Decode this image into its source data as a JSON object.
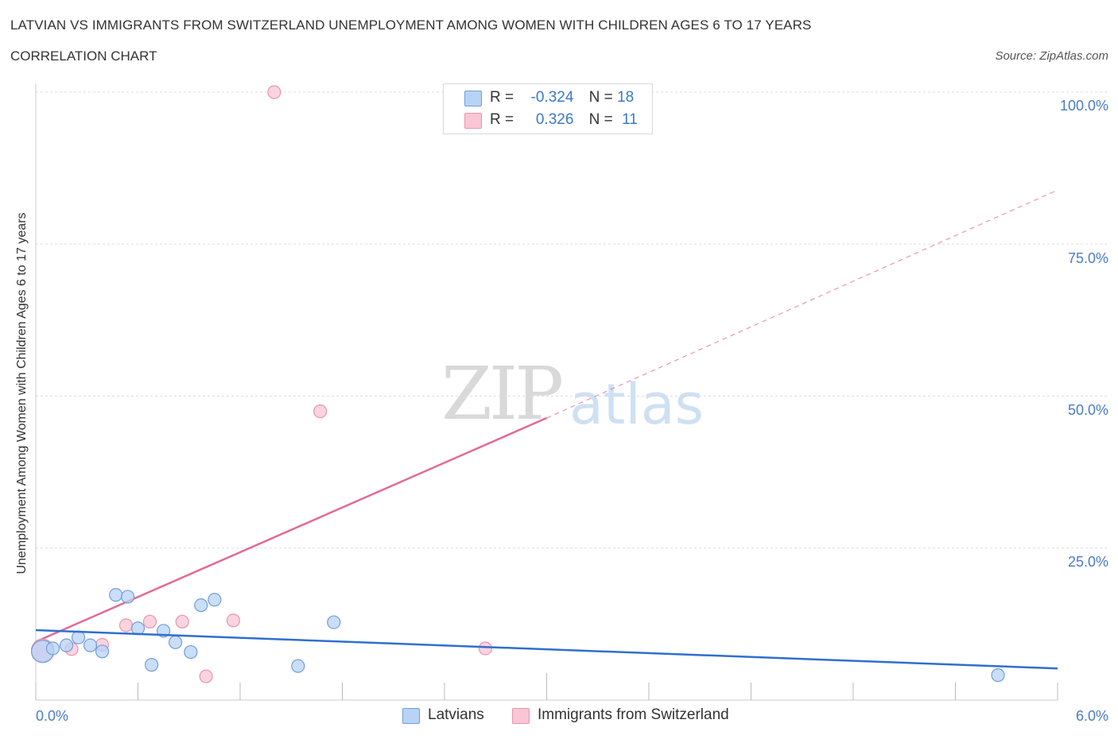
{
  "header": {
    "title": "LATVIAN VS IMMIGRANTS FROM SWITZERLAND UNEMPLOYMENT AMONG WOMEN WITH CHILDREN AGES 6 TO 17 YEARS",
    "subtitle": "CORRELATION CHART",
    "source": "Source: ZipAtlas.com"
  },
  "watermark": {
    "zip": "ZIP",
    "atlas": "atlas"
  },
  "legend": {
    "r_label": "R =",
    "n_label": "N =",
    "series1": {
      "r": "-0.324",
      "n": "18"
    },
    "series2": {
      "r": "0.326",
      "n": "11"
    }
  },
  "chart_data": {
    "type": "scatter",
    "title": "LATVIAN VS IMMIGRANTS FROM SWITZERLAND UNEMPLOYMENT AMONG WOMEN WITH CHILDREN AGES 6 TO 17 YEARS",
    "xlabel": "",
    "ylabel": "Unemployment Among Women with Children Ages 6 to 17 years",
    "xlim": [
      0,
      6
    ],
    "ylim": [
      0,
      100
    ],
    "x_tick_labels": [
      "0.0%",
      "6.0%"
    ],
    "y_ticks": [
      25,
      50,
      75,
      100
    ],
    "y_tick_labels": [
      "25.0%",
      "50.0%",
      "75.0%",
      "100.0%"
    ],
    "grid": true,
    "colors": {
      "latvians_fill": "#b8d3f5",
      "latvians_stroke": "#6f9edd",
      "latvians_line": "#2f6fcf",
      "swiss_fill": "#f8c6d4",
      "swiss_stroke": "#e994ad",
      "swiss_line": "#e06b95",
      "grid": "#dddddd",
      "tick_text": "#4a7cc9"
    },
    "series": [
      {
        "name": "Latvians",
        "r": -0.324,
        "n": 18,
        "points": [
          {
            "x": 0.04,
            "y": 8.0,
            "big": true
          },
          {
            "x": 0.1,
            "y": 8.5
          },
          {
            "x": 0.18,
            "y": 9.0
          },
          {
            "x": 0.25,
            "y": 10.3
          },
          {
            "x": 0.32,
            "y": 9.0
          },
          {
            "x": 0.39,
            "y": 8.0
          },
          {
            "x": 0.47,
            "y": 17.3
          },
          {
            "x": 0.54,
            "y": 17.0
          },
          {
            "x": 0.6,
            "y": 11.8
          },
          {
            "x": 0.68,
            "y": 5.8
          },
          {
            "x": 0.75,
            "y": 11.4
          },
          {
            "x": 0.82,
            "y": 9.5
          },
          {
            "x": 0.91,
            "y": 7.9
          },
          {
            "x": 0.97,
            "y": 15.6
          },
          {
            "x": 1.05,
            "y": 16.5
          },
          {
            "x": 1.54,
            "y": 5.6
          },
          {
            "x": 1.75,
            "y": 12.8
          },
          {
            "x": 5.65,
            "y": 4.1
          }
        ],
        "trend": {
          "x0": 0,
          "y0": 11.5,
          "x1": 6,
          "y1": 5.2
        }
      },
      {
        "name": "Immigrants from Switzerland",
        "r": 0.326,
        "n": 11,
        "points": [
          {
            "x": 0.04,
            "y": 8.2,
            "big": true
          },
          {
            "x": 0.21,
            "y": 8.4
          },
          {
            "x": 0.39,
            "y": 9.1
          },
          {
            "x": 0.53,
            "y": 12.3
          },
          {
            "x": 0.67,
            "y": 12.9
          },
          {
            "x": 0.86,
            "y": 12.9
          },
          {
            "x": 1.0,
            "y": 3.9
          },
          {
            "x": 1.16,
            "y": 13.1
          },
          {
            "x": 1.4,
            "y": 100.0
          },
          {
            "x": 1.67,
            "y": 47.5
          },
          {
            "x": 2.64,
            "y": 8.5
          }
        ],
        "trend": {
          "x0": 0,
          "y0": 9.6,
          "x1": 3.0,
          "y1": 46.4,
          "dashed_to_x": 6,
          "dashed_to_y": 83.9
        }
      }
    ]
  },
  "bottom_legend": {
    "latvians": "Latvians",
    "swiss": "Immigrants from Switzerland"
  }
}
